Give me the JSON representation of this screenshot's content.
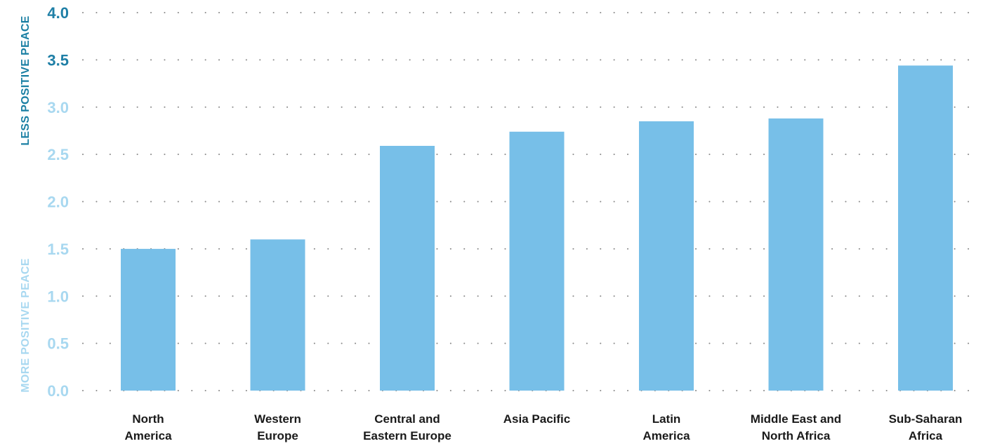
{
  "chart_data": {
    "type": "bar",
    "categories": [
      [
        "North",
        "America"
      ],
      [
        "Western",
        "Europe"
      ],
      [
        "Central and",
        "Eastern Europe"
      ],
      [
        "Asia Pacific"
      ],
      [
        "Latin",
        "America"
      ],
      [
        "Middle East and",
        "North Africa"
      ],
      [
        "Sub-Saharan",
        "Africa"
      ]
    ],
    "values": [
      1.5,
      1.6,
      2.59,
      2.74,
      2.85,
      2.88,
      3.44
    ],
    "ylim": [
      0,
      4
    ],
    "yticks": [
      "0.0",
      "0.5",
      "1.0",
      "1.5",
      "2.0",
      "2.5",
      "3.0",
      "3.5",
      "4.0"
    ],
    "ylabel_top": "LESS POSITIVE PEACE",
    "ylabel_bottom": "MORE POSITIVE PEACE",
    "grid": "dotted horizontal",
    "colors": {
      "bar": "#77bfe8",
      "tick_light": "#a8d8f0",
      "tick_dark": "#1f7fa6",
      "label_top": "#1a7fa3",
      "label_bottom": "#a8d8f0",
      "grid": "#8a8a8a",
      "category_text": "#1a1a1a"
    }
  }
}
